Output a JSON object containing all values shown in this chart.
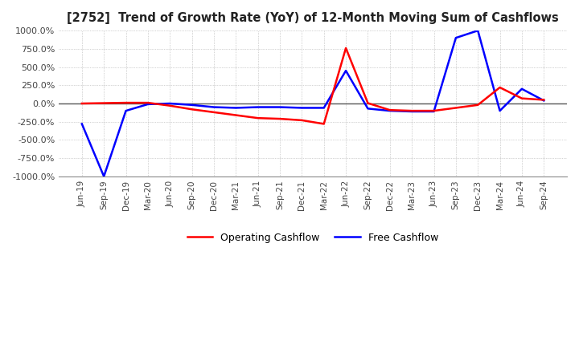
{
  "title": "[2752]  Trend of Growth Rate (YoY) of 12-Month Moving Sum of Cashflows",
  "ylim": [
    -1000,
    1000
  ],
  "yticks": [
    -1000,
    -750,
    -500,
    -250,
    0,
    250,
    500,
    750,
    1000
  ],
  "background_color": "#ffffff",
  "grid_color": "#aaaaaa",
  "x_labels": [
    "Jun-19",
    "Sep-19",
    "Dec-19",
    "Mar-20",
    "Jun-20",
    "Sep-20",
    "Dec-20",
    "Mar-21",
    "Jun-21",
    "Sep-21",
    "Dec-21",
    "Mar-22",
    "Jun-22",
    "Sep-22",
    "Dec-22",
    "Mar-23",
    "Jun-23",
    "Sep-23",
    "Dec-23",
    "Mar-24",
    "Jun-24",
    "Sep-24"
  ],
  "operating_cashflow": [
    0,
    5,
    10,
    10,
    -30,
    -80,
    -120,
    -160,
    -200,
    -210,
    -230,
    -280,
    760,
    5,
    -90,
    -100,
    -100,
    -60,
    -20,
    220,
    70,
    50
  ],
  "free_cashflow": [
    -280,
    -1000,
    -100,
    -10,
    0,
    -20,
    -50,
    -60,
    -50,
    -50,
    -60,
    -60,
    450,
    -70,
    -100,
    -110,
    -110,
    900,
    1000,
    -100,
    200,
    40
  ],
  "op_color": "#ff0000",
  "fc_color": "#0000ff",
  "legend_op": "Operating Cashflow",
  "legend_fc": "Free Cashflow"
}
